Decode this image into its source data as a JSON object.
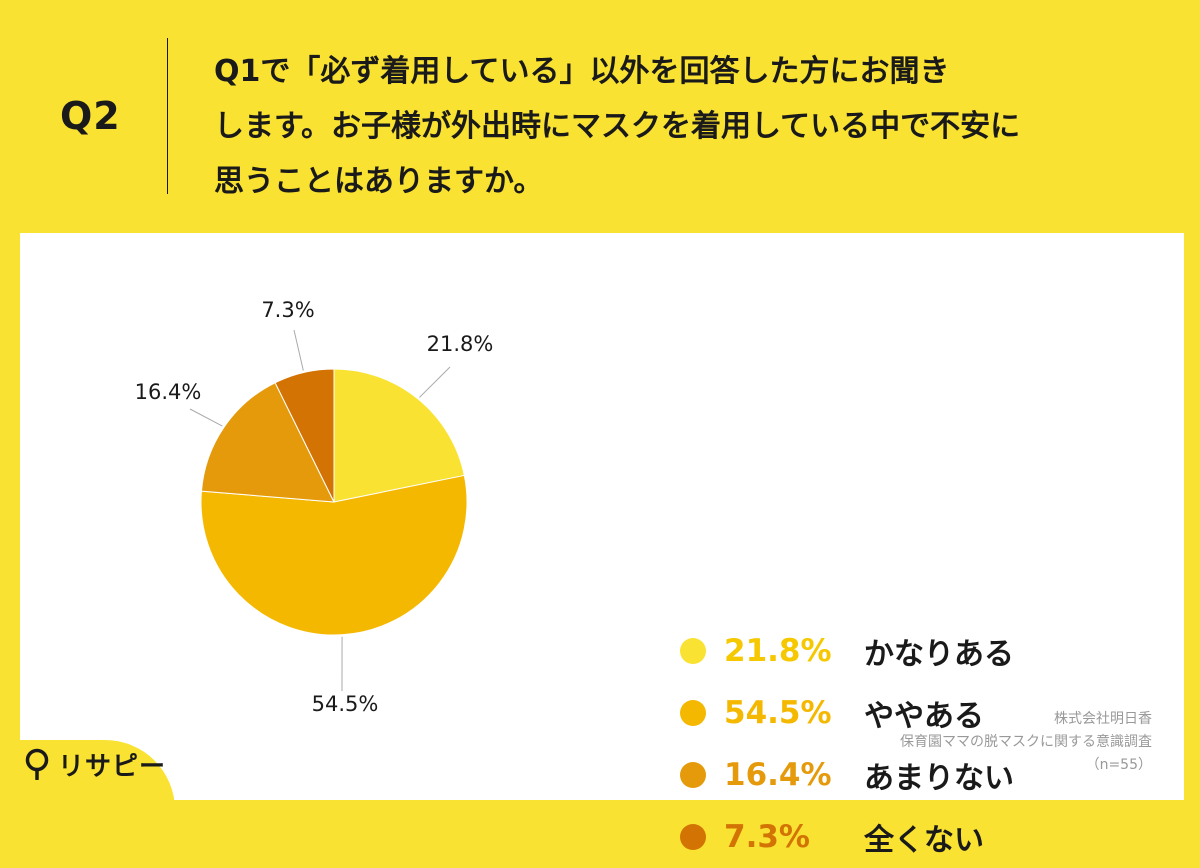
{
  "question": {
    "number": "Q2",
    "lines": [
      "Q1で「必ず着用している」以外を回答した方にお聞き",
      "します。お子様が外出時にマスクを着用している中で不安に",
      "思うことはありますか。"
    ]
  },
  "chart_data": {
    "type": "pie",
    "categories": [
      "かなりある",
      "ややある",
      "あまりない",
      "全くない"
    ],
    "values": [
      21.8,
      54.5,
      16.4,
      7.3
    ],
    "labels": [
      "21.8%",
      "54.5%",
      "16.4%",
      "7.3%"
    ],
    "colors": [
      "#f9e231",
      "#f5b800",
      "#e59a0b",
      "#d27304"
    ],
    "start_angle": "12 o'clock",
    "direction": "clockwise",
    "legend_position": "right"
  },
  "source": {
    "company": "株式会社明日香",
    "survey": "保育園ママの脱マスクに関する意識調査",
    "sample": "（n=55）"
  },
  "logo": {
    "text": "リサピー",
    "icon": "pin-icon"
  }
}
